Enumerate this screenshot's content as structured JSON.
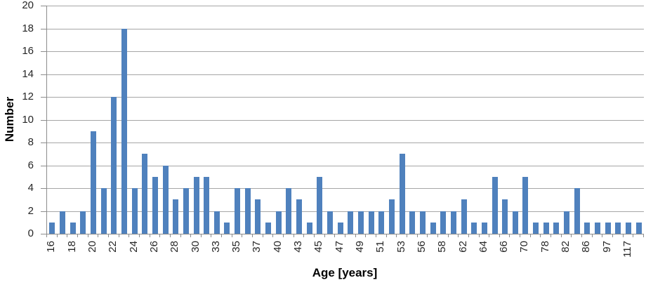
{
  "chart_data": {
    "type": "bar",
    "title": "",
    "xlabel": "Age [years]",
    "ylabel": "Number",
    "ylim": [
      0,
      20
    ],
    "yticks": [
      0,
      2,
      4,
      6,
      8,
      10,
      12,
      14,
      16,
      18,
      20
    ],
    "grid": "horizontal",
    "legend": "none",
    "bar_color": "#4f81bd",
    "gridline_color": "#a6a6a6",
    "axis_color": "#8c8c8c",
    "categories": [
      "16",
      "",
      "18",
      "",
      "20",
      "",
      "22",
      "",
      "24",
      "",
      "26",
      "",
      "28",
      "",
      "30",
      "",
      "33",
      "",
      "35",
      "",
      "37",
      "",
      "40",
      "",
      "43",
      "",
      "45",
      "",
      "47",
      "",
      "49",
      "",
      "51",
      "",
      "53",
      "",
      "56",
      "",
      "58",
      "",
      "62",
      "",
      "64",
      "",
      "66",
      "",
      "70",
      "",
      "78",
      "",
      "82",
      "",
      "86",
      "",
      "97",
      "",
      "117",
      ""
    ],
    "values": [
      1,
      2,
      1,
      2,
      9,
      4,
      12,
      18,
      4,
      7,
      5,
      6,
      3,
      4,
      5,
      5,
      2,
      1,
      4,
      4,
      3,
      1,
      2,
      4,
      3,
      1,
      5,
      2,
      1,
      2,
      2,
      2,
      2,
      3,
      7,
      2,
      2,
      1,
      2,
      2,
      3,
      1,
      1,
      5,
      3,
      2,
      5,
      1,
      1,
      1,
      2,
      4,
      1,
      1,
      1,
      1,
      1,
      1
    ],
    "note_visible_x_labels": [
      "16",
      "18",
      "20",
      "22",
      "24",
      "26",
      "28",
      "30",
      "33",
      "35",
      "37",
      "40",
      "43",
      "45",
      "47",
      "49",
      "51",
      "53",
      "56",
      "58",
      "62",
      "64",
      "66",
      "70",
      "78",
      "82",
      "86",
      "97",
      "117"
    ]
  }
}
